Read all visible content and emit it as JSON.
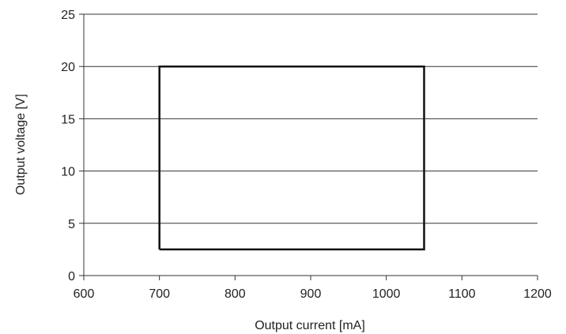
{
  "chart_data": {
    "type": "line",
    "title": "",
    "xlabel": "Output current [mA]",
    "ylabel": "Output voltage [V]",
    "xlim": [
      600,
      1200
    ],
    "ylim": [
      0,
      25
    ],
    "x_ticks": [
      600,
      700,
      800,
      900,
      1000,
      1100,
      1200
    ],
    "y_ticks": [
      0,
      5,
      10,
      15,
      20,
      25
    ],
    "x_tick_labels": [
      "600",
      "700",
      "800",
      "900",
      "1000",
      "1100",
      "1200"
    ],
    "y_tick_labels": [
      "0",
      "5",
      "10",
      "15",
      "20",
      "25"
    ],
    "grid": {
      "horizontal": true,
      "vertical": false
    },
    "series": [
      {
        "x": [
          700,
          1050,
          1050,
          700,
          700
        ],
        "y": [
          2.5,
          2.5,
          20,
          20,
          2.5
        ],
        "color": "#111111"
      }
    ],
    "colors": {
      "axis": "#333333",
      "grid": "#333333",
      "series": "#111111"
    }
  }
}
